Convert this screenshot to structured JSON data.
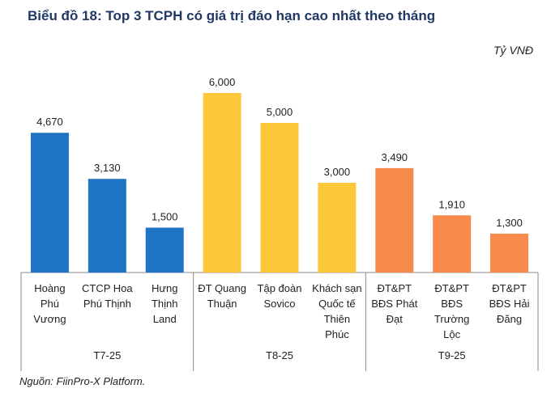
{
  "title": "Biểu đồ 18: Top 3 TCPH có giá trị đáo hạn cao nhất theo tháng",
  "unit": "Tỷ VNĐ",
  "source": "Nguồn: FiinPro-X Platform.",
  "colors": {
    "T7-25": "#1f74c4",
    "T8-25": "#fdc73a",
    "T9-25": "#f88a4c",
    "axis": "#8a8a8a",
    "text": "#1f1f1f"
  },
  "chart_data": {
    "type": "bar",
    "title": "Biểu đồ 18: Top 3 TCPH có giá trị đáo hạn cao nhất theo tháng",
    "ylabel": "Tỷ VNĐ",
    "ylim": [
      0,
      6000
    ],
    "groups": [
      {
        "label": "T7-25",
        "color": "#1f74c4",
        "bars": [
          {
            "label": [
              "Hoàng",
              "Phú",
              "Vương"
            ],
            "value": 4670,
            "value_label": "4,670"
          },
          {
            "label": [
              "CTCP Hoa",
              "Phú Thịnh"
            ],
            "value": 3130,
            "value_label": "3,130"
          },
          {
            "label": [
              "Hưng",
              "Thịnh",
              "Land"
            ],
            "value": 1500,
            "value_label": "1,500"
          }
        ]
      },
      {
        "label": "T8-25",
        "color": "#fdc73a",
        "bars": [
          {
            "label": [
              "ĐT Quang",
              "Thuận"
            ],
            "value": 6000,
            "value_label": "6,000"
          },
          {
            "label": [
              "Tập đoàn",
              "Sovico"
            ],
            "value": 5000,
            "value_label": "5,000"
          },
          {
            "label": [
              "Khách sạn",
              "Quốc tế",
              "Thiên",
              "Phúc"
            ],
            "value": 3000,
            "value_label": "3,000"
          }
        ]
      },
      {
        "label": "T9-25",
        "color": "#f88a4c",
        "bars": [
          {
            "label": [
              "ĐT&PT",
              "BĐS Phát",
              "Đạt"
            ],
            "value": 3490,
            "value_label": "3,490"
          },
          {
            "label": [
              "ĐT&PT",
              "BĐS",
              "Trường",
              "Lộc"
            ],
            "value": 1910,
            "value_label": "1,910"
          },
          {
            "label": [
              "ĐT&PT",
              "BĐS Hải",
              "Đăng"
            ],
            "value": 1300,
            "value_label": "1,300"
          }
        ]
      }
    ]
  }
}
